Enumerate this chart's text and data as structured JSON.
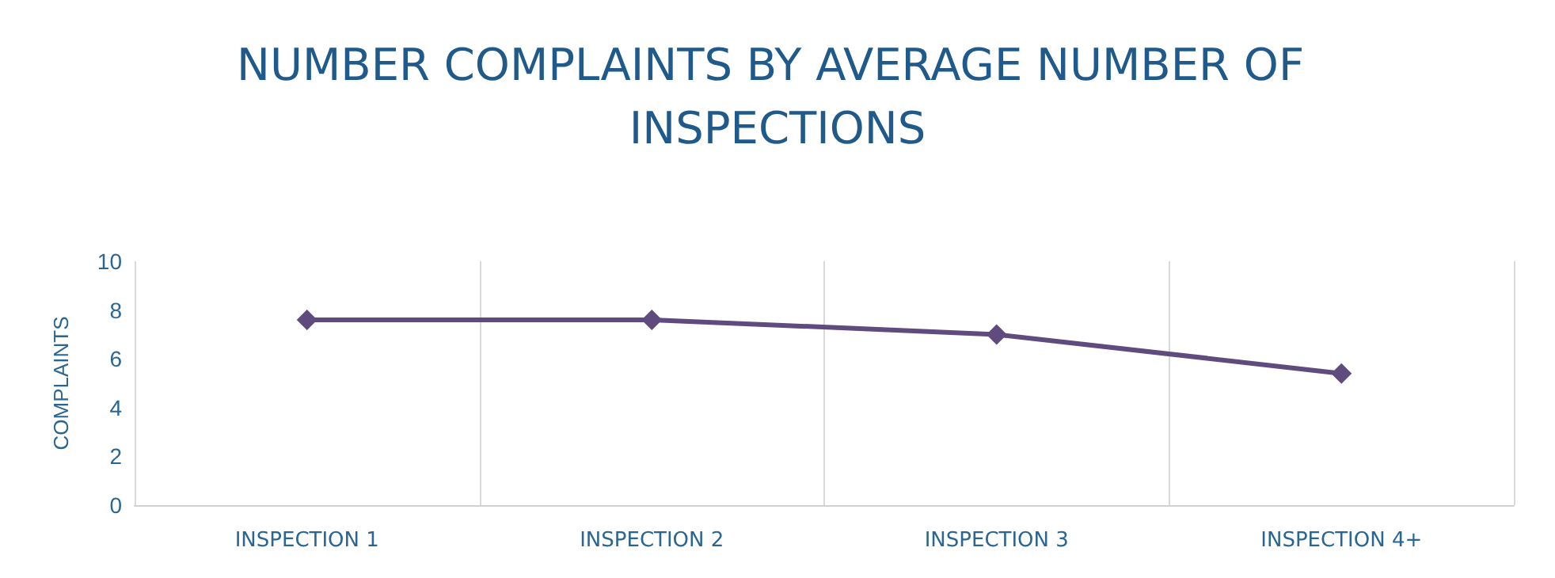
{
  "chart_data": {
    "type": "line",
    "title": "NUMBER COMPLAINTS BY AVERAGE NUMBER OF INSPECTIONS",
    "ylabel": "COMPLAINTS",
    "categories": [
      "INSPECTION 1",
      "INSPECTION 2",
      "INSPECTION 3",
      "INSPECTION 4+"
    ],
    "series": [
      {
        "color": "#5f4b7d",
        "values": [
          7.6,
          7.6,
          7.0,
          5.4
        ]
      }
    ],
    "ylim": [
      0,
      10
    ],
    "yticks": [
      0,
      2,
      4,
      6,
      8,
      10
    ],
    "grid": "x",
    "marker": "diamond",
    "line_style": "solid"
  }
}
